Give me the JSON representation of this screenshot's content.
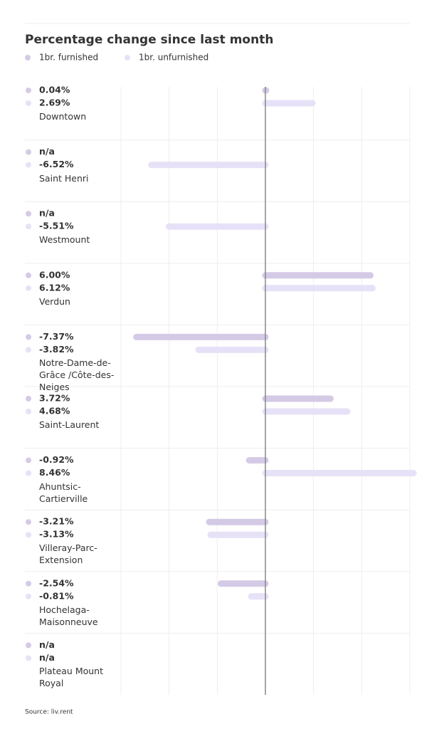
{
  "chart_data": {
    "type": "bar",
    "orientation": "horizontal",
    "title": "Percentage change since last month",
    "categories": [
      "Downtown",
      "Saint Henri",
      "Westmount",
      "Verdun",
      "Notre-Dame-de-Grâce /Côte-des-Neiges",
      "Saint-Laurent",
      "Ahuntsic-Cartierville",
      "Villeray-Parc-Extension",
      "Hochelaga-Maisonneuve",
      "Plateau Mount Royal"
    ],
    "series": [
      {
        "name": "1br. furnished",
        "color": "#d5cae6",
        "values": [
          0.04,
          null,
          null,
          6.0,
          -7.37,
          3.72,
          -0.92,
          -3.21,
          -2.54,
          null
        ],
        "value_labels": [
          "0.04%",
          "n/a",
          "n/a",
          "6.00%",
          "-7.37%",
          "3.72%",
          "-0.92%",
          "-3.21%",
          "-2.54%",
          "n/a"
        ]
      },
      {
        "name": "1br. unfurnished",
        "color": "#e7e1f8",
        "values": [
          2.69,
          -6.52,
          -5.51,
          6.12,
          -3.82,
          4.68,
          8.46,
          -3.13,
          -0.81,
          null
        ],
        "value_labels": [
          "2.69%",
          "-6.52%",
          "-5.51%",
          "6.12%",
          "-3.82%",
          "4.68%",
          "8.46%",
          "-3.13%",
          "-0.81%",
          "n/a"
        ]
      }
    ],
    "xlim": [
      -8.25,
      8.25
    ],
    "xticks": [
      -8.25,
      -5.5,
      -2.75,
      0,
      2.75,
      5.5,
      8.25
    ],
    "grid": true,
    "source": "Source: liv.rent"
  }
}
